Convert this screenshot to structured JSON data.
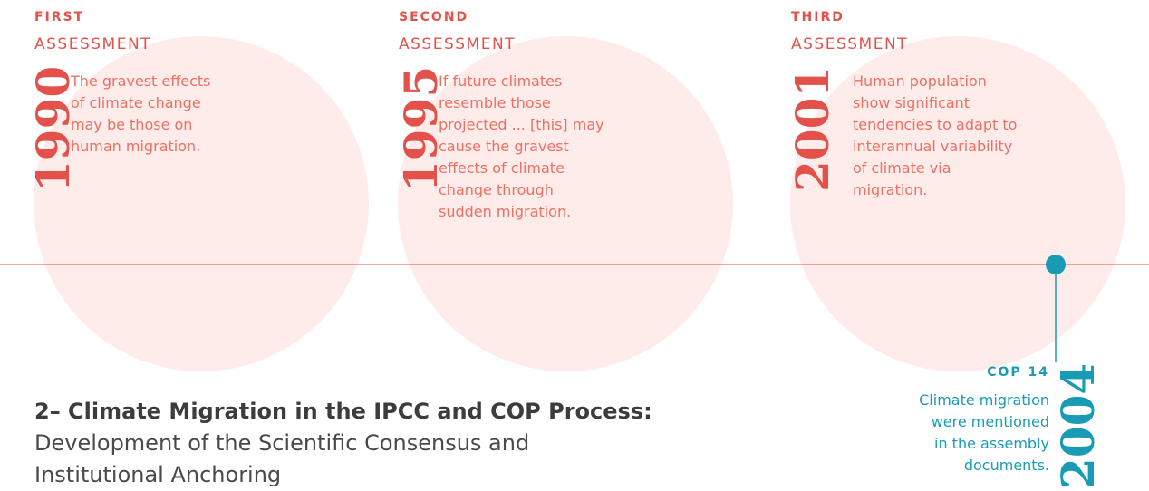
{
  "assessments": [
    {
      "ordinal": "FIRST",
      "label": "ASSESSMENT",
      "year": "1990",
      "quote": [
        "The gravest effects",
        "of climate change",
        "may be those on",
        "human migration."
      ]
    },
    {
      "ordinal": "SECOND",
      "label": "ASSESSMENT",
      "year": "1995",
      "quote": [
        "If future climates",
        "resemble those",
        "projected ... [this] may",
        "cause the gravest",
        "effects of climate",
        "change through",
        "sudden migration."
      ]
    },
    {
      "ordinal": "THIRD",
      "label": "ASSESSMENT",
      "year": "2001",
      "quote": [
        "Human population",
        "show significant",
        "tendencies to adapt to",
        "interannual variability",
        "of climate via",
        "migration."
      ]
    }
  ],
  "cop": {
    "label": "COP 14",
    "year": "2004",
    "text": [
      "Climate migration",
      "were mentioned",
      "in the assembly",
      "documents."
    ]
  },
  "heading": {
    "title": "2– Climate Migration in the IPCC and COP Process:",
    "subtitle": [
      "Development of the Scientific Consensus and",
      "Institutional Anchoring"
    ]
  }
}
